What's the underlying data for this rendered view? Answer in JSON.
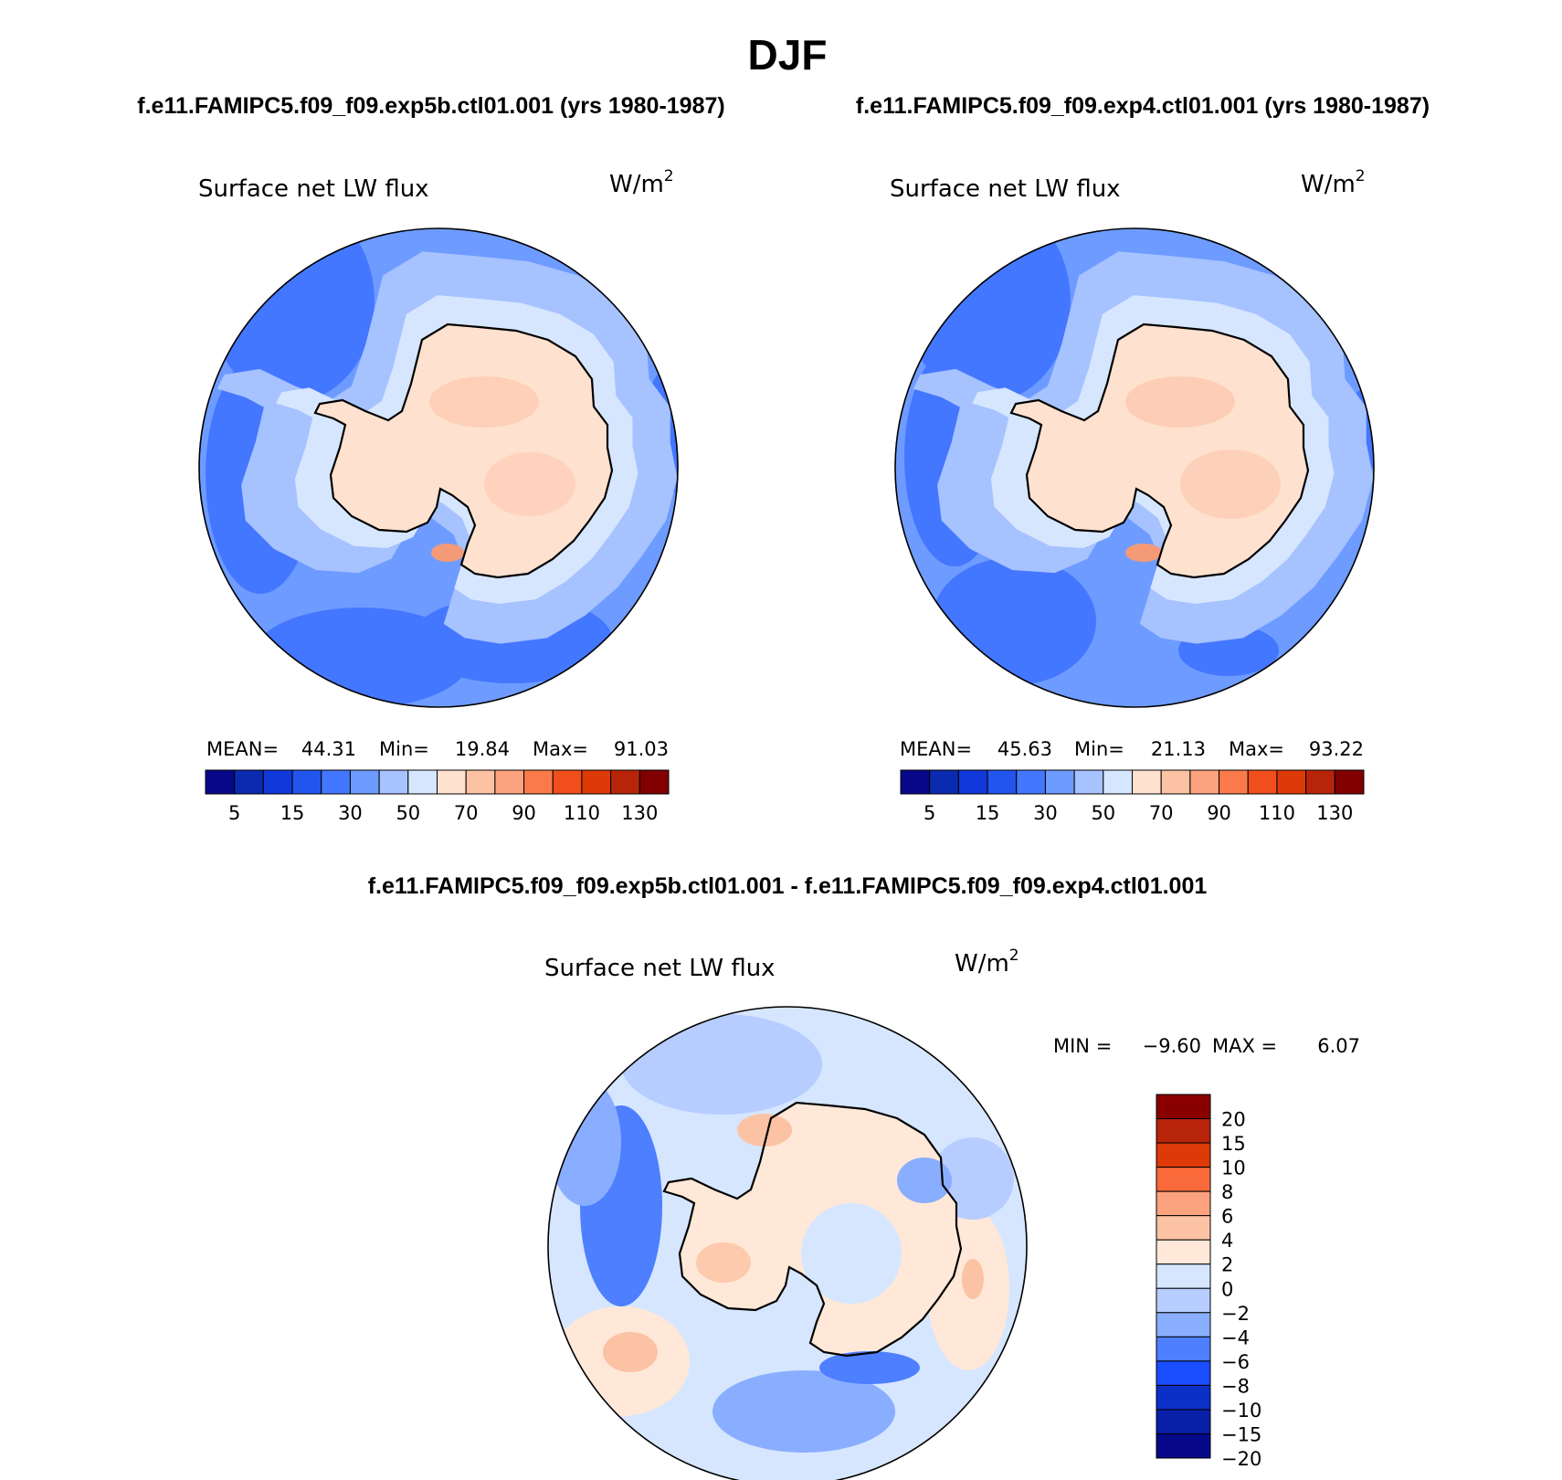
{
  "chart_data": {
    "type": "heatmap",
    "title": "DJF",
    "colors": {
      "ocean_deep": "#2255ee",
      "ocean": "#4477ff",
      "ocean_mid": "#6e9bff",
      "ocean_light": "#a6c2ff",
      "ice_edge": "#d6e6ff",
      "land": "#ffe1cf",
      "land_warm": "#fcc2a4",
      "land_hot": "#f59a77",
      "coast": "#000000"
    },
    "panels": [
      {
        "case": "f.e11.FAMIPC5.f09_f09.exp5b.ctl01.001 (yrs 1980-1987)",
        "field": "Surface net LW flux",
        "units": "W/m",
        "units_exp": "2",
        "stats": {
          "mean_label": "MEAN=",
          "mean": "44.31",
          "min_label": "Min=",
          "min": "19.84",
          "max_label": "Max=",
          "max": "91.03"
        }
      },
      {
        "case": "f.e11.FAMIPC5.f09_f09.exp4.ctl01.001 (yrs 1980-1987)",
        "field": "Surface net LW flux",
        "units": "W/m",
        "units_exp": "2",
        "stats": {
          "mean_label": "MEAN=",
          "mean": "45.63",
          "min_label": "Min=",
          "min": "21.13",
          "max_label": "Max=",
          "max": "93.22"
        }
      },
      {
        "case": "f.e11.FAMIPC5.f09_f09.exp5b.ctl01.001 - f.e11.FAMIPC5.f09_f09.exp4.ctl01.001",
        "field": "Surface net LW flux",
        "units": "W/m",
        "units_exp": "2",
        "stats": {
          "min_label": "MIN =",
          "min": "−9.60",
          "max_label": "MAX =",
          "max": "6.07"
        }
      }
    ],
    "abs_colorbar": {
      "levels": [
        "5",
        "15",
        "30",
        "50",
        "70",
        "90",
        "110",
        "130"
      ],
      "colors": [
        "#08088a",
        "#0a2ab0",
        "#1138d8",
        "#2255ee",
        "#4477ff",
        "#6e9bff",
        "#a6c2ff",
        "#d6e6ff",
        "#ffe1cf",
        "#fcc2a4",
        "#fca27e",
        "#fb7a4a",
        "#f04e1a",
        "#dd3a08",
        "#b8240a",
        "#800000"
      ]
    },
    "diff_colorbar": {
      "levels": [
        "20",
        "15",
        "10",
        "8",
        "6",
        "4",
        "2",
        "0",
        "−2",
        "−4",
        "−6",
        "−8",
        "−10",
        "−15",
        "−20"
      ],
      "colors": [
        "#8a0000",
        "#b8240a",
        "#dd3a08",
        "#fb6a3a",
        "#fca27e",
        "#fcc2a4",
        "#ffe8d8",
        "#d6e6ff",
        "#b7cdff",
        "#8aaeff",
        "#4d7fff",
        "#1a4dff",
        "#0a30c8",
        "#0a20a8",
        "#08088a"
      ]
    }
  }
}
